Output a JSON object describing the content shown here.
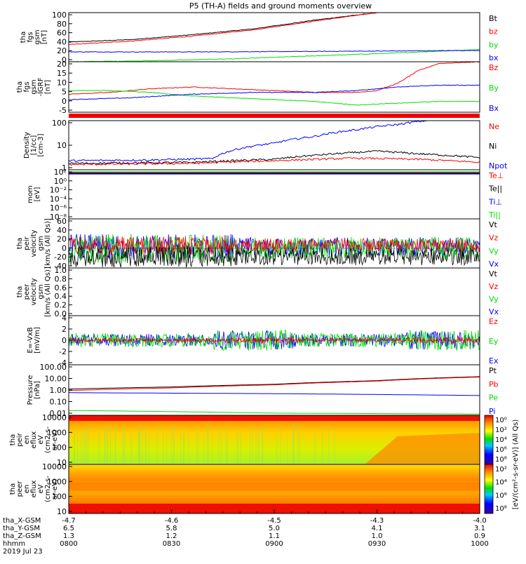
{
  "chart_data": {
    "type": "line",
    "title": "P5 (TH-A) fields and ground moments overview",
    "date": "2019 Jul 23",
    "colors": {
      "black": "#000000",
      "red": "#ff0000",
      "green": "#00dd00",
      "blue": "#0000ff"
    },
    "time_range": [
      "0800",
      "1000"
    ],
    "panels": [
      {
        "id": "fgs",
        "ylabel": [
          "tha",
          "fgs",
          "gsm",
          "[nT]"
        ],
        "ylim": [
          0,
          100
        ],
        "yticks": [
          "100",
          "80",
          "60",
          "40",
          "20",
          "0"
        ],
        "legend": [
          {
            "name": "Bt",
            "color": "black"
          },
          {
            "name": "bz",
            "color": "red"
          },
          {
            "name": "by",
            "color": "green"
          },
          {
            "name": "bx",
            "color": "blue"
          }
        ],
        "series": [
          {
            "name": "Bt",
            "color": "black",
            "points": [
              [
                0,
                40
              ],
              [
                0.15,
                45
              ],
              [
                0.3,
                55
              ],
              [
                0.45,
                67
              ],
              [
                0.6,
                85
              ],
              [
                0.75,
                100
              ]
            ]
          },
          {
            "name": "bz",
            "color": "red",
            "points": [
              [
                0,
                35
              ],
              [
                0.15,
                42
              ],
              [
                0.3,
                52
              ],
              [
                0.45,
                65
              ],
              [
                0.6,
                83
              ],
              [
                0.75,
                100
              ]
            ]
          },
          {
            "name": "by",
            "color": "green",
            "points": [
              [
                0,
                0
              ],
              [
                0.2,
                2
              ],
              [
                0.4,
                6
              ],
              [
                0.6,
                12
              ],
              [
                0.8,
                18
              ],
              [
                1,
                25
              ]
            ]
          },
          {
            "name": "bx",
            "color": "blue",
            "points": [
              [
                0,
                20
              ],
              [
                0.3,
                20
              ],
              [
                0.6,
                21
              ],
              [
                0.8,
                22
              ],
              [
                1,
                23
              ]
            ]
          }
        ]
      },
      {
        "id": "fgs_dsl",
        "ylabel": [
          "tha",
          "fgs",
          "gsm",
          "-IGRF",
          "[nT]"
        ],
        "ylim": [
          -8,
          20
        ],
        "yticks": [
          "20",
          "15",
          "10",
          "5",
          "0",
          "-5"
        ],
        "legend": [
          {
            "name": "Bz",
            "color": "red"
          },
          {
            "name": "By",
            "color": "green"
          },
          {
            "name": "Bx",
            "color": "blue"
          }
        ],
        "series": [
          {
            "name": "Bz",
            "color": "red",
            "points": [
              [
                0,
                2
              ],
              [
                0.1,
                3
              ],
              [
                0.2,
                5
              ],
              [
                0.3,
                6
              ],
              [
                0.4,
                5
              ],
              [
                0.5,
                4
              ],
              [
                0.6,
                3
              ],
              [
                0.7,
                3
              ],
              [
                0.75,
                4
              ],
              [
                0.8,
                8
              ],
              [
                0.85,
                15
              ],
              [
                0.9,
                19
              ],
              [
                1,
                20
              ]
            ]
          },
          {
            "name": "By",
            "color": "green",
            "points": [
              [
                0,
                4
              ],
              [
                0.1,
                4
              ],
              [
                0.2,
                3
              ],
              [
                0.3,
                1
              ],
              [
                0.4,
                0
              ],
              [
                0.5,
                -1
              ],
              [
                0.6,
                -2
              ],
              [
                0.7,
                -4
              ],
              [
                0.8,
                -3
              ],
              [
                0.9,
                -2
              ],
              [
                1,
                -2
              ]
            ]
          },
          {
            "name": "Bx",
            "color": "blue",
            "points": [
              [
                0,
                -1
              ],
              [
                0.15,
                0
              ],
              [
                0.3,
                2
              ],
              [
                0.45,
                3
              ],
              [
                0.6,
                3
              ],
              [
                0.7,
                4
              ],
              [
                0.8,
                6
              ],
              [
                0.9,
                7
              ],
              [
                1,
                7
              ]
            ]
          }
        ]
      },
      {
        "id": "density",
        "ylabel": [
          "Density",
          "[1/cc]",
          "[cm-3]"
        ],
        "ylim_log": [
          0.3,
          200
        ],
        "yticks": [
          "100",
          "10",
          "1"
        ],
        "legend": [
          {
            "name": "Ne",
            "color": "red"
          },
          {
            "name": "Ni",
            "color": "black"
          },
          {
            "name": "Npot",
            "color": "blue"
          }
        ],
        "series": [
          {
            "name": "Npot",
            "color": "blue",
            "points": [
              [
                0,
                1.0
              ],
              [
                0.2,
                1.1
              ],
              [
                0.35,
                1.3
              ],
              [
                0.4,
                4
              ],
              [
                0.5,
                10
              ],
              [
                0.6,
                25
              ],
              [
                0.7,
                60
              ],
              [
                0.8,
                120
              ],
              [
                0.87,
                200
              ]
            ]
          },
          {
            "name": "Ni",
            "color": "black",
            "points": [
              [
                0,
                0.7
              ],
              [
                0.3,
                0.8
              ],
              [
                0.5,
                1.2
              ],
              [
                0.65,
                2.5
              ],
              [
                0.75,
                3.5
              ],
              [
                0.85,
                2.5
              ],
              [
                1,
                1.5
              ]
            ]
          },
          {
            "name": "Ne",
            "color": "red",
            "points": [
              [
                0,
                0.6
              ],
              [
                0.3,
                0.7
              ],
              [
                0.5,
                1.0
              ],
              [
                0.7,
                1.4
              ],
              [
                0.85,
                1.2
              ],
              [
                1,
                0.8
              ]
            ]
          }
        ]
      },
      {
        "id": "temp",
        "ylabel": [
          "mom",
          "[eV]"
        ],
        "yticks": [
          "10²",
          "10⁰",
          "10⁻²",
          "10⁻⁴",
          "10⁻⁶",
          "10⁻⁸"
        ],
        "legend": [
          {
            "name": "Te⊥",
            "color": "red"
          },
          {
            "name": "Te||",
            "color": "black"
          },
          {
            "name": "Ti⊥",
            "color": "blue"
          },
          {
            "name": "Ti||",
            "color": "green"
          }
        ]
      },
      {
        "id": "peir_vel",
        "ylabel": [
          "tha",
          "peir",
          "velocity",
          "gsm",
          "[km/s (All Qs)]"
        ],
        "ylim": [
          -40,
          60
        ],
        "yticks": [
          "60",
          "40",
          "20",
          "0",
          "-20",
          "-40"
        ],
        "legend": [
          {
            "name": "Vt",
            "color": "black"
          },
          {
            "name": "Vz",
            "color": "red"
          },
          {
            "name": "Vy",
            "color": "green"
          },
          {
            "name": "Vx",
            "color": "blue"
          }
        ]
      },
      {
        "id": "peer_vel",
        "ylabel": [
          "tha",
          "peer",
          "velocity",
          "gsm",
          "[km/s (All Qs)]"
        ],
        "yticks": [
          "1.0",
          "0.8",
          "0.6",
          "0.4",
          "0.2",
          "0.0"
        ],
        "legend": [
          {
            "name": "Vt",
            "color": "black"
          },
          {
            "name": "Vz",
            "color": "red"
          },
          {
            "name": "Vy",
            "color": "green"
          },
          {
            "name": "Vx",
            "color": "blue"
          }
        ]
      },
      {
        "id": "efield",
        "ylabel": [
          "E=-VxB",
          "[mV/m]"
        ],
        "ylim": [
          -4,
          4
        ],
        "yticks": [
          "4",
          "2",
          "0",
          "-2",
          "-4"
        ],
        "legend": [
          {
            "name": "Ez",
            "color": "red"
          },
          {
            "name": "Ey",
            "color": "green"
          },
          {
            "name": "Ex",
            "color": "blue"
          }
        ]
      },
      {
        "id": "pressure",
        "ylabel": [
          "Pressure",
          "[nPa]"
        ],
        "yticks": [
          "100.00",
          "10.00",
          "1.00",
          "0.10",
          "0.01"
        ],
        "legend": [
          {
            "name": "Pt",
            "color": "black"
          },
          {
            "name": "Pb",
            "color": "red"
          },
          {
            "name": "Pe",
            "color": "green"
          },
          {
            "name": "Pi",
            "color": "blue"
          }
        ],
        "series": [
          {
            "name": "Pt",
            "color": "black",
            "points": [
              [
                0,
                1.2
              ],
              [
                0.25,
                1.8
              ],
              [
                0.5,
                3
              ],
              [
                0.75,
                6
              ],
              [
                1,
                13
              ]
            ]
          },
          {
            "name": "Pb",
            "color": "red",
            "points": [
              [
                0,
                0.9
              ],
              [
                0.25,
                1.5
              ],
              [
                0.5,
                2.7
              ],
              [
                0.75,
                5.5
              ],
              [
                1,
                12
              ]
            ]
          },
          {
            "name": "Pi",
            "color": "blue",
            "points": [
              [
                0,
                0.6
              ],
              [
                0.5,
                0.5
              ],
              [
                1,
                0.35
              ]
            ]
          },
          {
            "name": "Pe",
            "color": "green",
            "points": [
              [
                0,
                0.02
              ],
              [
                0.5,
                0.012
              ],
              [
                1,
                0.01
              ]
            ]
          }
        ]
      },
      {
        "id": "peir_spec",
        "ylabel": [
          "tha",
          "peir",
          "en",
          "eflux",
          "eV",
          "(cm2-s-",
          "sr-eV)"
        ],
        "yticks": [
          "10000",
          "1000",
          "100",
          "10"
        ]
      },
      {
        "id": "peer_spec",
        "ylabel": [
          "tha",
          "peer",
          "en",
          "eflux",
          "eV",
          "(cm2-s-",
          "sr-eV)"
        ],
        "yticks": [
          "10000",
          "1000",
          "100",
          "10"
        ]
      }
    ],
    "colorbar": {
      "label": "[eV/(cm²-s-sr-eV)] (All Qs)",
      "ticks_upper": [
        "10⁸",
        "10⁶",
        "10⁴",
        "10²",
        "10⁰"
      ],
      "ticks_lower": [
        "10⁸",
        "10⁶",
        "10⁴",
        "10²"
      ]
    },
    "x_axis": {
      "rows": [
        {
          "label": "tha_X-GSM",
          "values": [
            "-4.7",
            "-4.6",
            "-4.5",
            "-4.3",
            "-4.0"
          ]
        },
        {
          "label": "tha_Y-GSM",
          "values": [
            "6.5",
            "5.8",
            "5.0",
            "4.1",
            "3.1"
          ]
        },
        {
          "label": "tha_Z-GSM",
          "values": [
            "1.3",
            "1.2",
            "1.1",
            "1.0",
            "0.9"
          ]
        },
        {
          "label": "hhmm",
          "values": [
            "0800",
            "0830",
            "0900",
            "0930",
            "1000"
          ]
        }
      ]
    }
  }
}
